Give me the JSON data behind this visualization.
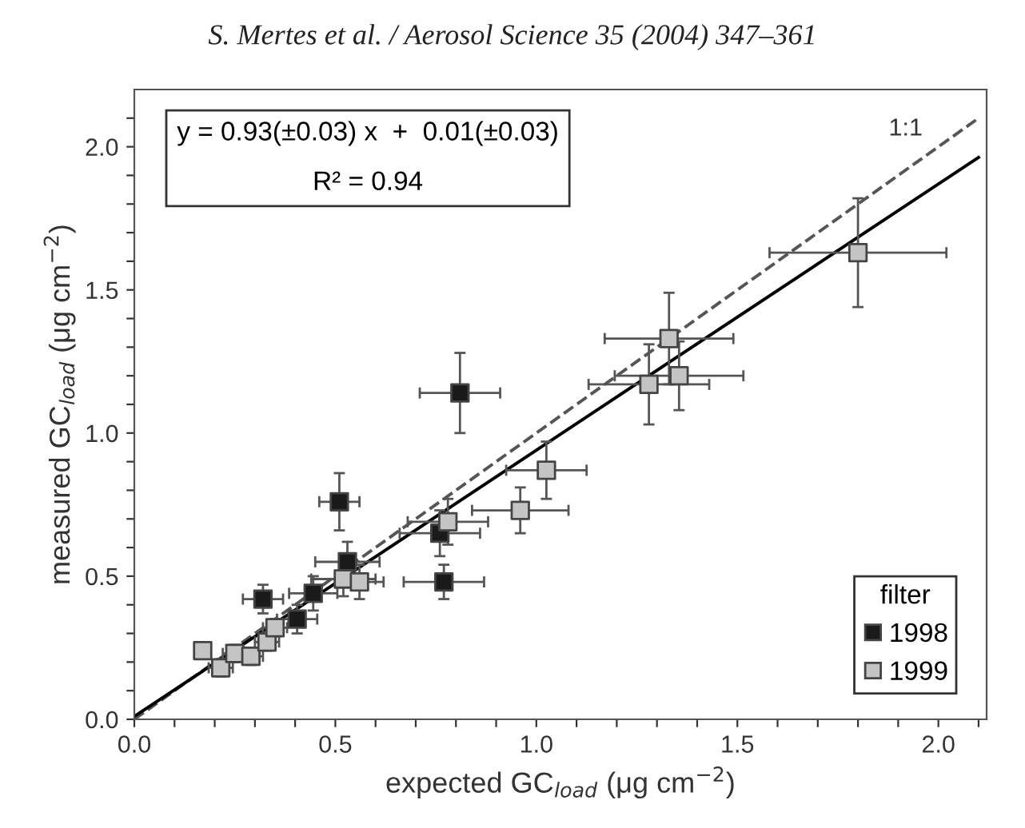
{
  "chart_data": {
    "type": "scatter",
    "xlabel": "expected GC$_{load}$ (μg cm$^{−2}$)",
    "ylabel": "measured GC$_{load}$ (μg cm$^{−2}$)",
    "legend_title": "filter",
    "legend": "bottom right",
    "grid": false,
    "marker": "square",
    "xlim": [
      0,
      2.12
    ],
    "ylim": [
      0,
      2.2
    ],
    "xticks": [
      {
        "value": 0,
        "label": "0.0"
      },
      {
        "value": 0.1,
        "label": null
      },
      {
        "value": 0.2,
        "label": null
      },
      {
        "value": 0.3,
        "label": null
      },
      {
        "value": 0.4,
        "label": null
      },
      {
        "value": 0.5,
        "label": "0.5"
      },
      {
        "value": 0.6,
        "label": null
      },
      {
        "value": 0.7,
        "label": null
      },
      {
        "value": 0.8,
        "label": null
      },
      {
        "value": 0.9,
        "label": null
      },
      {
        "value": 1.0,
        "label": "1.0"
      },
      {
        "value": 1.1,
        "label": null
      },
      {
        "value": 1.2,
        "label": null
      },
      {
        "value": 1.3,
        "label": null
      },
      {
        "value": 1.4,
        "label": null
      },
      {
        "value": 1.5,
        "label": "1.5"
      },
      {
        "value": 1.6,
        "label": null
      },
      {
        "value": 1.7,
        "label": null
      },
      {
        "value": 1.8,
        "label": null
      },
      {
        "value": 1.9,
        "label": null
      },
      {
        "value": 2.0,
        "label": "2.0"
      },
      {
        "value": 2.1,
        "label": null
      }
    ],
    "yticks": [
      {
        "value": 0,
        "label": "0.0"
      },
      {
        "value": 0.1,
        "label": null
      },
      {
        "value": 0.2,
        "label": null
      },
      {
        "value": 0.3,
        "label": null
      },
      {
        "value": 0.4,
        "label": null
      },
      {
        "value": 0.5,
        "label": "0.5"
      },
      {
        "value": 0.6,
        "label": null
      },
      {
        "value": 0.7,
        "label": null
      },
      {
        "value": 0.8,
        "label": null
      },
      {
        "value": 0.9,
        "label": null
      },
      {
        "value": 1.0,
        "label": "1.0"
      },
      {
        "value": 1.1,
        "label": null
      },
      {
        "value": 1.2,
        "label": null
      },
      {
        "value": 1.3,
        "label": null
      },
      {
        "value": 1.4,
        "label": null
      },
      {
        "value": 1.5,
        "label": "1.5"
      },
      {
        "value": 1.6,
        "label": null
      },
      {
        "value": 1.7,
        "label": null
      },
      {
        "value": 1.8,
        "label": null
      },
      {
        "value": 1.9,
        "label": null
      },
      {
        "value": 2.0,
        "label": "2.0"
      },
      {
        "value": 2.1,
        "label": null
      }
    ],
    "series": [
      {
        "type": "line",
        "color": "#555555",
        "line_style": "dashed",
        "marker": "none",
        "x": [
          0,
          2.1
        ],
        "values": [
          0,
          2.1
        ]
      },
      {
        "type": "line",
        "color": "#000000",
        "line_style": "solid",
        "marker": "none",
        "x": [
          0,
          2.1
        ],
        "values": [
          0.01,
          1.963
        ]
      },
      {
        "name": "1998",
        "color": "#1a1a1a",
        "x": [
          0.51,
          0.53,
          0.32,
          0.445,
          0.405,
          0.76,
          0.77,
          0.81
        ],
        "values": [
          0.76,
          0.55,
          0.42,
          0.44,
          0.35,
          0.65,
          0.48,
          1.14
        ],
        "xerrors": [
          0.05,
          0.08,
          0.05,
          0.06,
          0.05,
          0.1,
          0.1,
          0.1
        ],
        "errors": [
          0.1,
          0.07,
          0.05,
          0.06,
          0.05,
          0.08,
          0.06,
          0.14
        ]
      },
      {
        "name": "1999",
        "color": "#c4c4c4",
        "x": [
          0.17,
          0.215,
          0.25,
          0.29,
          0.33,
          0.35,
          0.52,
          0.56,
          0.78,
          0.96,
          1.025,
          1.8,
          1.33,
          1.28,
          1.355
        ],
        "values": [
          0.24,
          0.18,
          0.23,
          0.22,
          0.27,
          0.32,
          0.49,
          0.48,
          0.69,
          0.73,
          0.87,
          1.63,
          1.33,
          1.17,
          1.2
        ],
        "xerrors": [
          null,
          0.03,
          0.03,
          0.03,
          0.03,
          0.03,
          0.08,
          0.06,
          0.1,
          0.12,
          0.1,
          0.22,
          0.16,
          0.15,
          0.16
        ],
        "errors": [
          null,
          0.03,
          0.03,
          0.03,
          0.03,
          0.03,
          0.06,
          0.06,
          0.08,
          0.08,
          0.1,
          0.19,
          0.16,
          0.14,
          0.12
        ]
      }
    ],
    "annotations": [
      "S. Mertes et al. / Aerosol Science 35 (2004) 347–361",
      "y = 0.93(±0.03) x  +  0.01(±0.03)",
      "R² = 0.94",
      "1:1"
    ]
  }
}
